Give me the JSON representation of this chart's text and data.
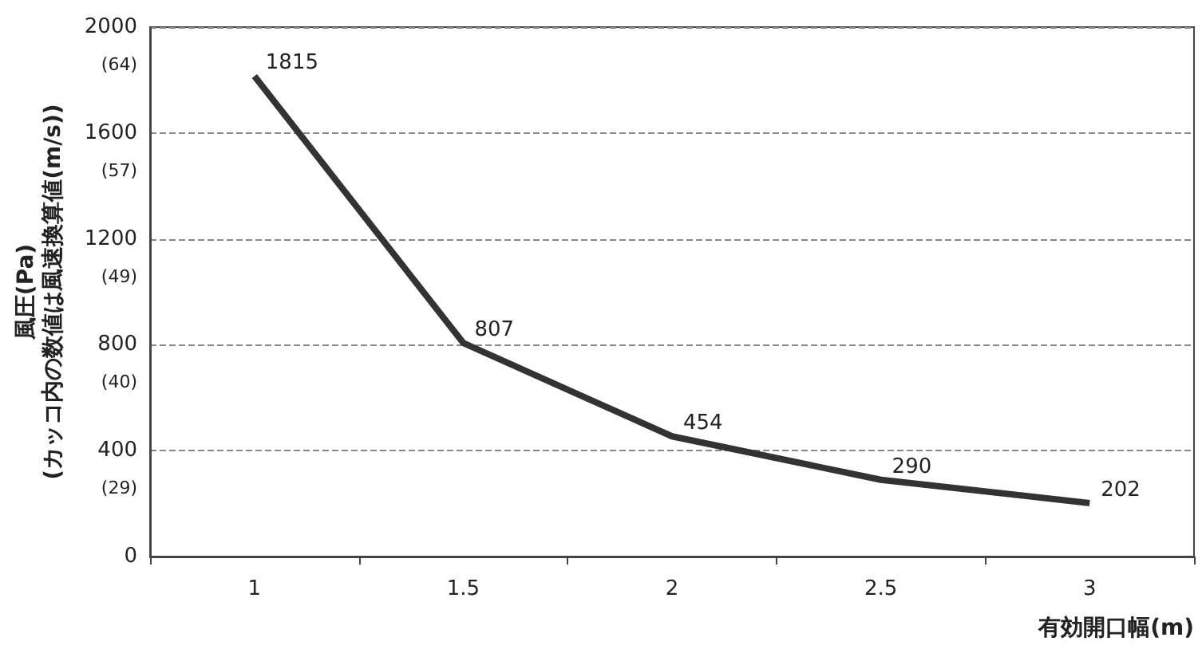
{
  "chart_data": {
    "type": "line",
    "xlabel": "有効開口幅(m)",
    "ylabel": "風圧(Pa)\n(カッコ内の数値は風速換算値(m/s))",
    "categories": [
      "1",
      "1.5",
      "2",
      "2.5",
      "3"
    ],
    "series": [
      {
        "color": "#333333",
        "values": [
          1815,
          807,
          454,
          290,
          202
        ]
      }
    ],
    "ylim": [
      0,
      2000
    ],
    "yticks": [
      0,
      400,
      800,
      1200,
      1600,
      2000
    ],
    "annotations": [
      "(29)",
      "(40)",
      "(49)",
      "(57)",
      "(64)"
    ],
    "grid": "y",
    "data_labels": true,
    "marker": "none",
    "line_style": "solid"
  }
}
